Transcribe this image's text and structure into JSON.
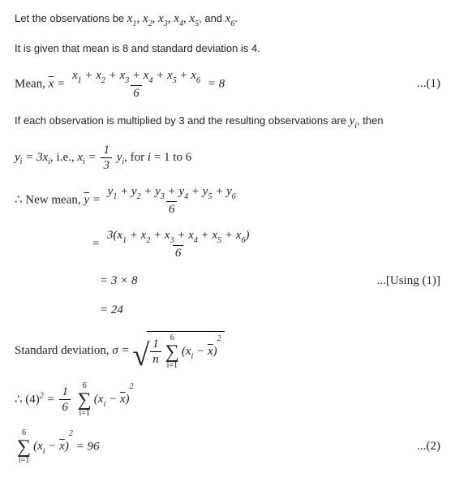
{
  "intro1_a": "Let the observations be ",
  "intro1_b": ", and ",
  "intro1_c": ".",
  "intro2": "It is given that mean is 8 and standard deviation is 4.",
  "meanLabel": "Mean, ",
  "eq8": " = 8",
  "tag1": "...(1)",
  "intro3_a": "If each observation is multiplied by 3 and the resulting observations are ",
  "intro3_b": ", then",
  "forrange": ", for ",
  "forvals": " = 1 to 6",
  "ie": ", i.e., ",
  "newmean": "∴ New mean, ",
  "eq3x8": "= 3 × 8",
  "eq24": "= 24",
  "using1": "...[Using (1)]",
  "sdLabel": "Standard deviation, ",
  "six": "6",
  "n": "n",
  "i1": "i=1",
  "lim6": "6",
  "sq2": "2",
  "thereforeFour": "∴ ",
  "fourBase": "(4)",
  "eq96": " = 96",
  "tag2": "...(2)",
  "sigma_sym": "σ",
  "y_sym": "y",
  "x_sym": "x",
  "i_sym": "i",
  "eq3": "3",
  "one": "1",
  "times3": "3",
  "yi": "y",
  "xi": "x",
  "sums": {
    "x": [
      "1",
      "2",
      "3",
      "4",
      "5",
      "6"
    ],
    "y": [
      "1",
      "2",
      "3",
      "4",
      "5",
      "6"
    ]
  }
}
